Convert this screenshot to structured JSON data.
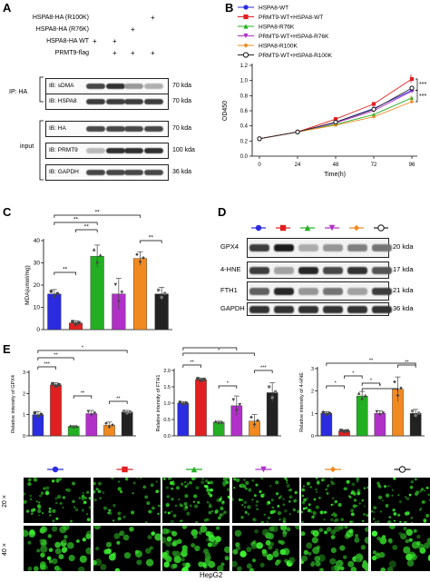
{
  "panels": {
    "A": {
      "label": "A",
      "rows": [
        {
          "name": "HSPA8-HA (R100K)",
          "marks": [
            "",
            "",
            "",
            "+"
          ]
        },
        {
          "name": "HSPA8-HA (R76K)",
          "marks": [
            "",
            "",
            "+",
            ""
          ]
        },
        {
          "name": "HSPA8-HA WT",
          "marks": [
            "+",
            "+",
            "",
            ""
          ]
        },
        {
          "name": "PRMT9-flag",
          "marks": [
            "",
            "+",
            "+",
            "+"
          ]
        }
      ],
      "ip_label": "IP: HA",
      "input_label": "input",
      "blots": [
        {
          "name": "IB: sDMA",
          "kda": "70 kda",
          "intensity": [
            0.8,
            0.9,
            0.45,
            0.35
          ]
        },
        {
          "name": "IB: HSPA8",
          "kda": "70 kda",
          "intensity": [
            0.85,
            0.85,
            0.85,
            0.85
          ]
        },
        {
          "name": "IB: HA",
          "kda": "70 kda",
          "intensity": [
            0.8,
            0.8,
            0.8,
            0.8
          ]
        },
        {
          "name": "IB: PRMT9",
          "kda": "100 kda",
          "intensity": [
            0.3,
            0.9,
            0.9,
            0.9
          ]
        },
        {
          "name": "IB: GAPDH",
          "kda": "36 kda",
          "intensity": [
            0.8,
            0.8,
            0.8,
            0.8
          ]
        }
      ]
    },
    "B": {
      "label": "B"
    },
    "C": {
      "label": "C"
    },
    "D": {
      "label": "D",
      "blots": [
        {
          "name": "GPX4",
          "kda": "20 kda",
          "intensity": [
            0.8,
            0.95,
            0.3,
            0.4,
            0.5,
            0.55
          ]
        },
        {
          "name": "4-HNE",
          "kda": "17 kda",
          "intensity": [
            0.8,
            0.35,
            0.9,
            0.75,
            0.85,
            0.7
          ]
        },
        {
          "name": "FTH1",
          "kda": "21 kda",
          "intensity": [
            0.65,
            0.9,
            0.4,
            0.55,
            0.35,
            0.8
          ]
        },
        {
          "name": "GAPDH",
          "kda": "36 kda",
          "intensity": [
            0.85,
            0.85,
            0.85,
            0.85,
            0.85,
            0.85
          ]
        }
      ]
    },
    "E": {
      "label": "E"
    },
    "F": {
      "rows": [
        {
          "label": "20 ×",
          "density": 0.45
        },
        {
          "label": "40 ×",
          "density": 0.7
        }
      ],
      "caption": "HepG2"
    }
  },
  "legend": {
    "items": [
      {
        "label": "HSPA8-WT",
        "color": "#2b2bdf",
        "marker": "circle"
      },
      {
        "label": "PRMT9-WT+HSPA8-WT",
        "color": "#e02020",
        "marker": "square"
      },
      {
        "label": "HSPA8-R76K",
        "color": "#22b022",
        "marker": "triangle-up"
      },
      {
        "label": "PRMT9-WT+HSPA8-R76K",
        "color": "#b030c8",
        "marker": "triangle-down"
      },
      {
        "label": "HSPA8-R100K",
        "color": "#f08a20",
        "marker": "diamond"
      },
      {
        "label": "PRMT9-WT+HSPA8-R100K",
        "color": "#222222",
        "marker": "circle-open"
      }
    ]
  },
  "chart_data": [
    {
      "panel": "B",
      "type": "line",
      "xlabel": "Time(h)",
      "ylabel": "OD450",
      "x": [
        0,
        24,
        48,
        72,
        96
      ],
      "xticks": [
        "0",
        "24",
        "48",
        "72",
        "96"
      ],
      "ylim": [
        0,
        1.2
      ],
      "yticks": [
        "0.0",
        "0.2",
        "0.4",
        "0.6",
        "0.8",
        "1.0",
        "1.2"
      ],
      "annotations": [
        "***",
        "***"
      ],
      "series": [
        {
          "name": "HSPA8-WT",
          "values": [
            0.23,
            0.32,
            0.45,
            0.63,
            0.87
          ]
        },
        {
          "name": "PRMT9-WT+HSPA8-WT",
          "values": [
            0.23,
            0.32,
            0.49,
            0.69,
            1.02
          ]
        },
        {
          "name": "HSPA8-R76K",
          "values": [
            0.23,
            0.32,
            0.42,
            0.55,
            0.77
          ]
        },
        {
          "name": "PRMT9-WT+HSPA8-R76K",
          "values": [
            0.23,
            0.32,
            0.44,
            0.6,
            0.86
          ]
        },
        {
          "name": "HSPA8-R100K",
          "values": [
            0.23,
            0.32,
            0.41,
            0.52,
            0.72
          ]
        },
        {
          "name": "PRMT9-WT+HSPA8-R100K",
          "values": [
            0.23,
            0.32,
            0.45,
            0.62,
            0.9
          ]
        }
      ]
    },
    {
      "panel": "C",
      "type": "bar",
      "ylabel": "MDA(umol/mg)",
      "ylim": [
        0,
        40
      ],
      "yticks": [
        "0",
        "10",
        "20",
        "30",
        "40"
      ],
      "values": [
        16,
        3,
        33,
        16,
        32,
        16
      ],
      "errors": [
        2,
        1,
        5,
        7,
        3,
        3
      ],
      "annotations": [
        "**",
        "**",
        "**",
        "**",
        "**"
      ]
    },
    {
      "panel": "E1",
      "type": "bar",
      "ylabel": "Relative intensity of GPX4",
      "ylim": [
        0,
        3
      ],
      "yticks": [
        "0",
        "1",
        "2",
        "3"
      ],
      "values": [
        1.0,
        2.4,
        0.45,
        1.05,
        0.5,
        1.12
      ],
      "errors": [
        0.15,
        0.1,
        0.03,
        0.15,
        0.15,
        0.08
      ],
      "annotations": [
        "***",
        "**",
        "*",
        "**",
        "**"
      ]
    },
    {
      "panel": "E2",
      "type": "bar",
      "ylabel": "Relative intensity of FTH1",
      "ylim": [
        0,
        2
      ],
      "yticks": [
        "0.0",
        "0.5",
        "1.0",
        "1.5",
        "2.0"
      ],
      "values": [
        1.0,
        1.72,
        0.42,
        0.92,
        0.45,
        1.32
      ],
      "errors": [
        0.05,
        0.05,
        0.03,
        0.3,
        0.2,
        0.3
      ],
      "annotations": [
        "**",
        "*",
        "*",
        "*",
        "***"
      ]
    },
    {
      "panel": "E3",
      "type": "bar",
      "ylabel": "Relative intensity of 4-HNE",
      "ylim": [
        0,
        3
      ],
      "yticks": [
        "0",
        "1",
        "2",
        "3"
      ],
      "values": [
        1.0,
        0.22,
        1.78,
        1.0,
        2.08,
        1.0
      ],
      "errors": [
        0.08,
        0.04,
        0.2,
        0.12,
        0.55,
        0.18
      ],
      "annotations": [
        "*",
        "*",
        "*",
        "**",
        "*",
        "**"
      ]
    }
  ]
}
